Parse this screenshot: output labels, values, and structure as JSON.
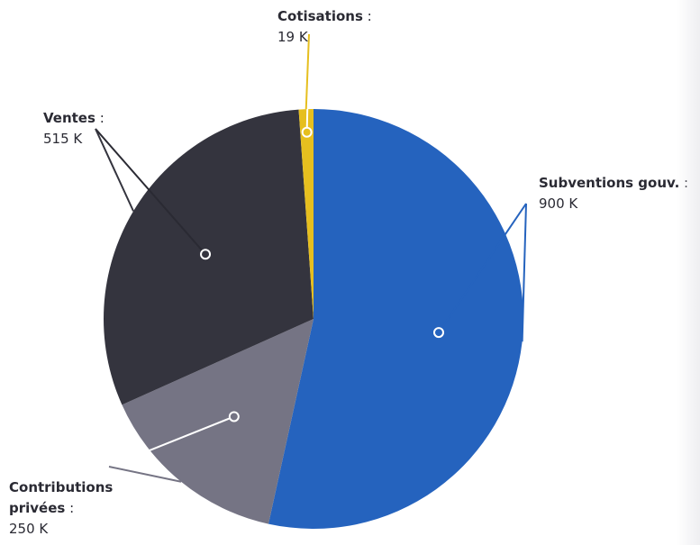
{
  "chart_data": {
    "type": "pie",
    "title": "",
    "start_angle_deg": 0,
    "slices": [
      {
        "name": "Subventions gouv.",
        "value": 900,
        "value_label": "900 K",
        "color": "#2563be"
      },
      {
        "name": "Contributions privées",
        "value": 250,
        "value_label": "250 K",
        "color": "#757484"
      },
      {
        "name": "Ventes",
        "value": 515,
        "value_label": "515 K",
        "color": "#34343e"
      },
      {
        "name": "Cotisations",
        "value": 19,
        "value_label": "19 K",
        "color": "#e6bf1f"
      }
    ],
    "separator": " :",
    "legend": "none",
    "data_labels": "outside-with-leader-lines"
  }
}
